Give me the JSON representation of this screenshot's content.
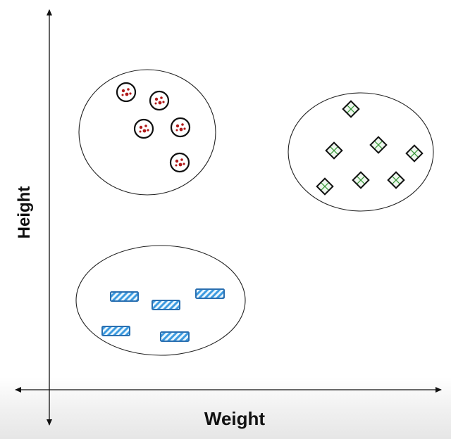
{
  "axes": {
    "x_label": "Weight",
    "y_label": "Height"
  },
  "clusters": [
    {
      "marker": "circle-red-dots",
      "count": 5,
      "stroke": "#111111",
      "fill": "#b01818"
    },
    {
      "marker": "diamond-green-cross",
      "count": 7,
      "stroke": "#111111",
      "fill": "#3a9a3a"
    },
    {
      "marker": "rect-blue-hatch",
      "count": 5,
      "stroke": "#2a6fb0",
      "fill": "#bfe0f5"
    }
  ]
}
